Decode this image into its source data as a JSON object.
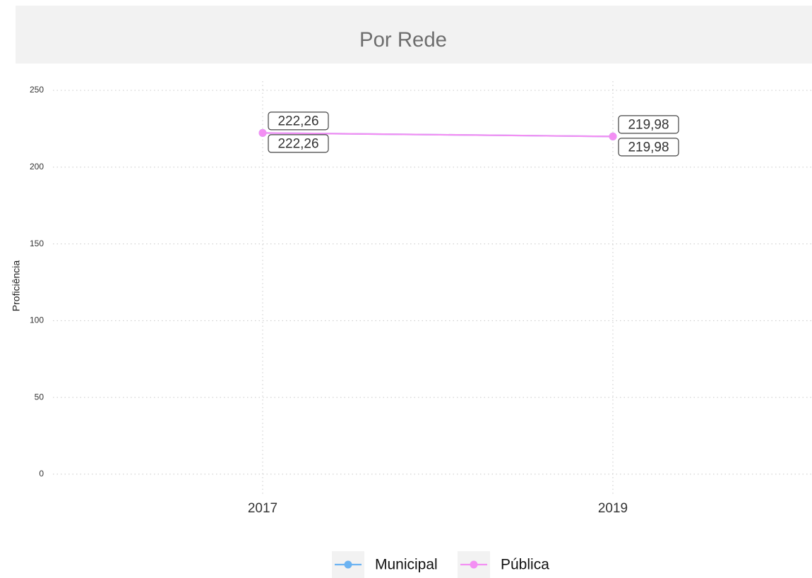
{
  "chart_data": {
    "type": "line",
    "title": "Por Rede",
    "y_label": "Proficiência",
    "categories": [
      "2017",
      "2019"
    ],
    "series": [
      {
        "name": "Municipal",
        "color": "#6bb3f2",
        "values": [
          222.26,
          219.98
        ],
        "value_labels": [
          "222,26",
          "219,98"
        ]
      },
      {
        "name": "Pública",
        "color": "#f38ff3",
        "values": [
          222.26,
          219.98
        ],
        "value_labels": [
          "222,26",
          "219,98"
        ]
      }
    ],
    "ylim": [
      -12.9,
      256
    ],
    "yticks": [
      0,
      50,
      100,
      150,
      200,
      250
    ],
    "grid": true,
    "legend": "bottom"
  }
}
